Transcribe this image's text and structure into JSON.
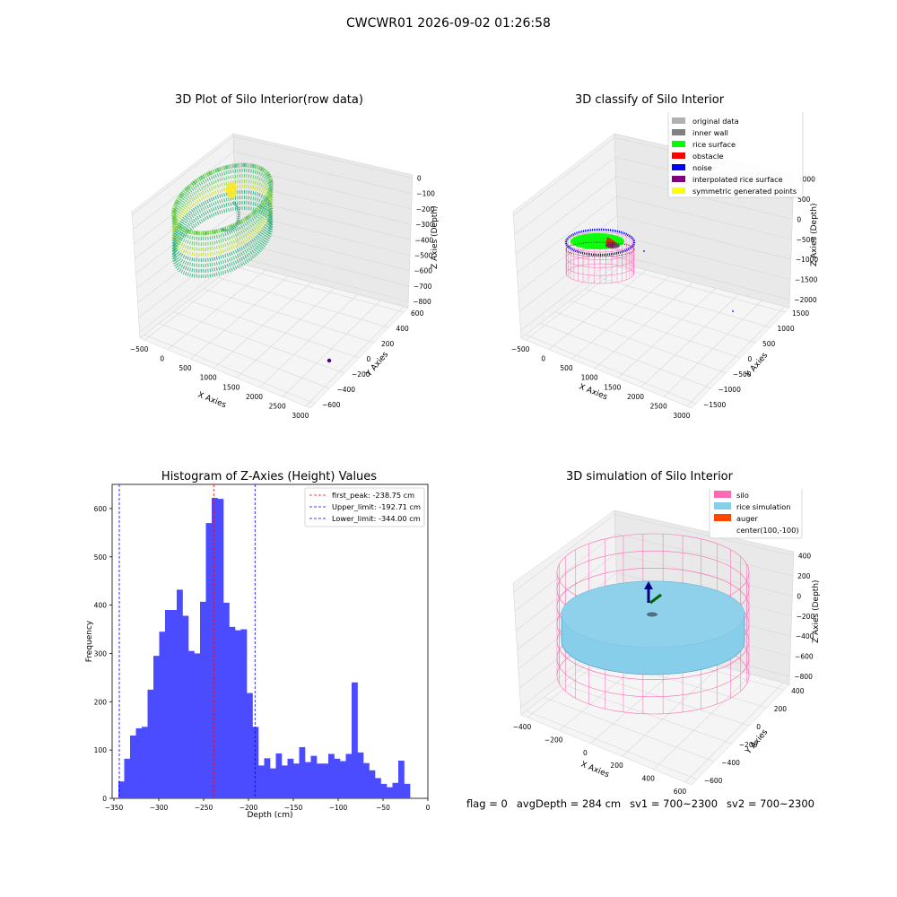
{
  "suptitle": "CWCWR01 2026-09-02 01:26:58",
  "footer": {
    "flag": "flag = 0",
    "avg_depth": "avgDepth = 284 cm",
    "sv1": "sv1 = 700~2300",
    "sv2": "sv2 = 700~2300"
  },
  "chart_data": [
    {
      "type": "scatter",
      "title": "3D Plot of Silo Interior(row data)",
      "xlabel": "X Axies",
      "ylabel": "Y Axies",
      "zlabel": "Z Axies (Depth)",
      "x_ticks": [
        "−500",
        "0",
        "500",
        "1000",
        "1500",
        "2000",
        "2500",
        "3000"
      ],
      "y_ticks": [
        "−600",
        "−400",
        "−200",
        "0",
        "200",
        "400",
        "600"
      ],
      "z_ticks": [
        "0",
        "−100",
        "−200",
        "−300",
        "−400",
        "−500",
        "−600",
        "−700",
        "−800"
      ],
      "colormap": "viridis",
      "notes": "dense ring-shaped point cloud near x≈0, y≈0, z −100 to −450; one outlier near x≈2900"
    },
    {
      "type": "scatter",
      "title": "3D classify of Silo Interior",
      "xlabel": "X Axies",
      "ylabel": "Y Axies",
      "zlabel": "Z Axies (Depth)",
      "x_ticks": [
        "−500",
        "0",
        "500",
        "1000",
        "1500",
        "2000",
        "2500",
        "3000"
      ],
      "y_ticks": [
        "−1500",
        "−1000",
        "−500",
        "0",
        "500",
        "1000",
        "1500"
      ],
      "z_ticks": [
        "1000",
        "500",
        "0",
        "−500",
        "−1000",
        "−1500",
        "−2000"
      ],
      "legend_position": "top-right",
      "legend": [
        {
          "label": "original data",
          "color": "#b0b0b0"
        },
        {
          "label": "inner wall",
          "color": "#808080"
        },
        {
          "label": "rice surface",
          "color": "#00ff00"
        },
        {
          "label": "obstacle",
          "color": "#ff0000"
        },
        {
          "label": "noise",
          "color": "#0000ff"
        },
        {
          "label": "interpolated rice surface",
          "color": "#800080"
        },
        {
          "label": "symmetric generated points",
          "color": "#ffff00"
        }
      ]
    },
    {
      "type": "bar",
      "title": "Histogram of Z-Axies (Height) Values",
      "xlabel": "Depth (cm)",
      "ylabel": "Frequency",
      "xlim": [
        -352,
        0
      ],
      "ylim": [
        0,
        650
      ],
      "x_ticks": [
        -350,
        -300,
        -250,
        -200,
        -150,
        -100,
        -50,
        0
      ],
      "y_ticks": [
        0,
        100,
        200,
        300,
        400,
        500,
        600
      ],
      "bin_start": -345,
      "bin_width": 6.5,
      "bar_color": "#4b4bff",
      "values": [
        35,
        82,
        130,
        145,
        148,
        225,
        295,
        345,
        390,
        390,
        432,
        378,
        305,
        300,
        407,
        570,
        622,
        620,
        405,
        355,
        348,
        350,
        218,
        148,
        68,
        83,
        62,
        93,
        68,
        82,
        72,
        106,
        75,
        88,
        72,
        72,
        92,
        82,
        77,
        92,
        240,
        95,
        73,
        58,
        42,
        30,
        23,
        32,
        78,
        30
      ],
      "legend_position": "top-right",
      "lines": [
        {
          "label": "first_peak: -238.75 cm",
          "x": -238.75,
          "color": "#ff0000"
        },
        {
          "label": "Upper_limit: -192.71 cm",
          "x": -192.71,
          "color": "#0000ff"
        },
        {
          "label": "Lower_limit: -344.00 cm",
          "x": -344.0,
          "color": "#0000ff"
        }
      ]
    },
    {
      "type": "scatter",
      "title": "3D simulation of Silo Interior",
      "xlabel": "X Axies",
      "ylabel": "Y Axies",
      "zlabel": "Z Axies (Depth)",
      "x_ticks": [
        "−400",
        "−200",
        "0",
        "200",
        "400",
        "600"
      ],
      "y_ticks": [
        "−600",
        "−400",
        "−200",
        "0",
        "200",
        "400"
      ],
      "z_ticks": [
        "400",
        "200",
        "0",
        "−200",
        "−400",
        "−600",
        "−800"
      ],
      "legend_position": "top-right",
      "legend": [
        {
          "label": "silo",
          "color": "#ff69b4"
        },
        {
          "label": "rice simulation",
          "color": "#87ceeb"
        },
        {
          "label": "auger",
          "color": "#ff4500"
        },
        {
          "label": "center(100,-100)",
          "color": ""
        }
      ]
    }
  ]
}
